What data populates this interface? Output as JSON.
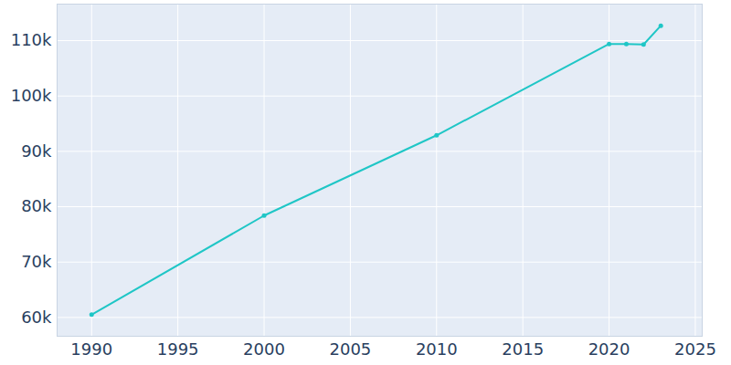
{
  "chart_data": {
    "type": "line",
    "x": [
      1990,
      2000,
      2010,
      2020,
      2021,
      2022,
      2023
    ],
    "values": [
      60500,
      78400,
      92900,
      109400,
      109400,
      109300,
      112700
    ],
    "color": "#1fc6c6",
    "marker": "circle",
    "xlim": [
      1988,
      2025.4
    ],
    "xticks": [
      1990,
      1995,
      2000,
      2005,
      2010,
      2015,
      2020,
      2025
    ],
    "ylim": [
      56600,
      116600
    ],
    "yticks": [
      {
        "value": 60000,
        "label": "60k"
      },
      {
        "value": 70000,
        "label": "70k"
      },
      {
        "value": 80000,
        "label": "80k"
      },
      {
        "value": 90000,
        "label": "90k"
      },
      {
        "value": 100000,
        "label": "100k"
      },
      {
        "value": 110000,
        "label": "110k"
      }
    ],
    "grid": true
  }
}
